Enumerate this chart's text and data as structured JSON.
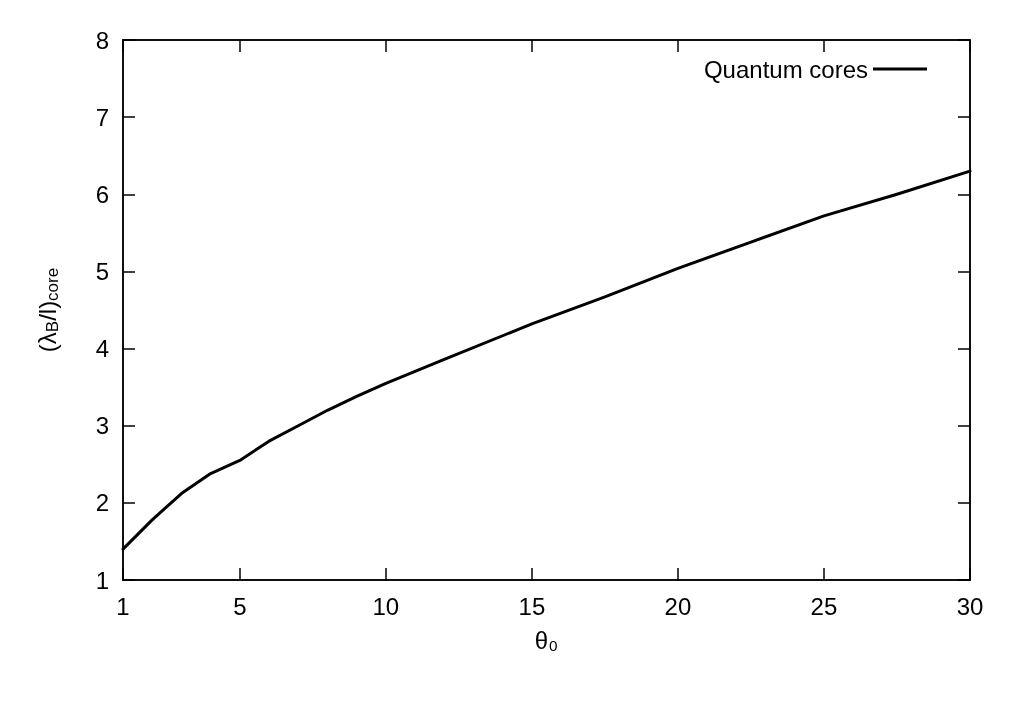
{
  "chart_data": {
    "type": "line",
    "xlabel": "θ₀",
    "ylabel": "(λ$_{B}$/l)$_{core}$",
    "x": [
      1,
      2,
      3,
      4,
      5,
      6,
      7,
      8,
      9,
      10,
      12,
      15,
      17.5,
      20,
      22.5,
      25,
      27.5,
      30
    ],
    "series": [
      {
        "name": "Quantum cores",
        "color": "#000000",
        "values": [
          1.4,
          1.78,
          2.12,
          2.38,
          2.55,
          2.8,
          3.0,
          3.2,
          3.38,
          3.55,
          3.86,
          4.32,
          4.67,
          5.04,
          5.38,
          5.72,
          6.0,
          6.3
        ]
      }
    ],
    "xlim": [
      1,
      30
    ],
    "xticks": [
      1,
      5,
      10,
      15,
      20,
      25,
      30
    ],
    "ylim": [
      1,
      8
    ],
    "yticks": [
      1,
      2,
      3,
      4,
      5,
      6,
      7,
      8
    ],
    "grid": false,
    "legend": "top right",
    "marker": "none",
    "line_style": "solid"
  }
}
